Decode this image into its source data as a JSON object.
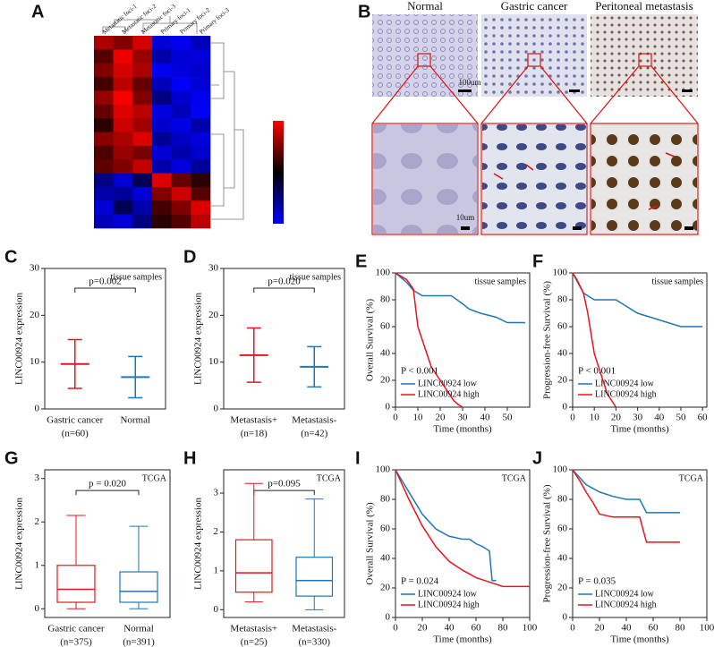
{
  "heatmap": {
    "label": "A",
    "columns": [
      "Metastatic foci-1",
      "Metastatic foci-2",
      "Metastatic foci-3",
      "Primary foci-1",
      "Primary foci-2",
      "Primary foci-3"
    ],
    "clim": [
      -3,
      3
    ],
    "values": [
      [
        2.0,
        1.5,
        2.5,
        -2.5,
        -2.8,
        -2.2
      ],
      [
        1.0,
        2.8,
        1.8,
        -2.0,
        -2.5,
        -2.6
      ],
      [
        1.5,
        2.5,
        2.0,
        -2.8,
        -2.6,
        -2.4
      ],
      [
        0.8,
        2.2,
        1.2,
        -2.2,
        -2.9,
        -2.5
      ],
      [
        1.8,
        2.9,
        1.5,
        -1.5,
        -2.4,
        -2.8
      ],
      [
        1.2,
        2.6,
        2.2,
        -2.6,
        -2.2,
        -2.9
      ],
      [
        0.5,
        2.4,
        1.9,
        -2.4,
        -2.7,
        -2.0
      ],
      [
        1.6,
        2.0,
        2.6,
        -1.8,
        -2.3,
        -2.6
      ],
      [
        0.9,
        1.8,
        1.4,
        -2.5,
        -2.0,
        -2.4
      ],
      [
        1.1,
        1.5,
        2.3,
        -2.0,
        -2.6,
        -1.8
      ],
      [
        -1.5,
        -2.5,
        -1.0,
        2.6,
        1.2,
        0.5
      ],
      [
        -2.0,
        -1.8,
        -2.5,
        1.5,
        2.4,
        1.0
      ],
      [
        -2.5,
        -1.0,
        -2.0,
        0.8,
        1.5,
        2.6
      ],
      [
        -2.2,
        -2.6,
        -1.5,
        0.5,
        1.0,
        2.2
      ]
    ]
  },
  "ihc": {
    "label": "B",
    "titles": [
      "Normal",
      "Gastric cancer",
      "Peritoneal metastasis"
    ],
    "scale_top": "100um",
    "scale_bottom": "10um"
  },
  "chart_data": [
    {
      "label": "C",
      "type": "errorbar",
      "ylabel": "LINC00924 expression",
      "annotation": "p=0.002",
      "corner_note": "tissue samples",
      "categories": [
        "Gastric cancer",
        "Normal"
      ],
      "category_counts": [
        "(n=60)",
        null
      ],
      "values": [
        9.6,
        6.8
      ],
      "errors": [
        5.2,
        4.4
      ],
      "colors": [
        "#e8141e",
        "#1f77b4"
      ],
      "ylim": [
        0,
        30
      ],
      "yticks": [
        0,
        10,
        20,
        30
      ]
    },
    {
      "label": "D",
      "type": "errorbar",
      "ylabel": "LINC00924 expression",
      "annotation": "p=0.020",
      "corner_note": "tissue samples",
      "categories": [
        "Metastasis+",
        "Metastasis-"
      ],
      "category_counts": [
        "(n=18)",
        "(n=42)"
      ],
      "values": [
        11.5,
        9.0
      ],
      "errors": [
        5.8,
        4.3
      ],
      "colors": [
        "#e8141e",
        "#1f77b4"
      ],
      "ylim": [
        0,
        30
      ],
      "yticks": [
        0,
        10,
        20,
        30
      ]
    },
    {
      "label": "E",
      "type": "line",
      "ylabel": "Overall Survival (%)",
      "xlabel": "Time (months)",
      "annotation": "P < 0.001",
      "corner_note": "tissue samples",
      "xlim": [
        0,
        60
      ],
      "xticks": [
        0,
        10,
        20,
        30,
        40,
        50
      ],
      "ylim": [
        0,
        100
      ],
      "yticks": [
        0,
        20,
        40,
        60,
        80,
        100
      ],
      "legend": "lower left",
      "series": [
        {
          "name": "LINC00924 low",
          "color": "#1f77b4",
          "x": [
            0,
            5,
            8,
            12,
            25,
            30,
            33,
            38,
            45,
            50,
            58
          ],
          "values": [
            100,
            93,
            87,
            83,
            83,
            77,
            73,
            70,
            67,
            63,
            63
          ]
        },
        {
          "name": "LINC00924 high",
          "color": "#e8141e",
          "x": [
            0,
            5,
            8,
            10,
            12,
            14,
            16,
            18,
            20,
            22,
            24,
            26,
            28,
            30
          ],
          "values": [
            100,
            95,
            88,
            60,
            50,
            40,
            30,
            25,
            20,
            15,
            10,
            5,
            2,
            0
          ]
        }
      ]
    },
    {
      "label": "F",
      "type": "line",
      "ylabel": "Progression-free Survival (%)",
      "xlabel": "Time (months)",
      "annotation": "P < 0.001",
      "corner_note": "tissue samples",
      "xlim": [
        0,
        62
      ],
      "xticks": [
        0,
        10,
        20,
        30,
        40,
        50,
        60
      ],
      "ylim": [
        0,
        100
      ],
      "yticks": [
        0,
        20,
        40,
        60,
        80,
        100
      ],
      "legend": "lower left",
      "series": [
        {
          "name": "LINC00924 low",
          "color": "#1f77b4",
          "x": [
            0,
            5,
            10,
            20,
            25,
            30,
            40,
            50,
            60
          ],
          "values": [
            100,
            85,
            80,
            80,
            75,
            70,
            65,
            60,
            60
          ]
        },
        {
          "name": "LINC00924 high",
          "color": "#e8141e",
          "x": [
            0,
            2,
            5,
            7,
            9,
            10,
            12,
            14,
            16,
            18,
            20
          ],
          "values": [
            100,
            95,
            85,
            70,
            50,
            40,
            30,
            20,
            10,
            5,
            0
          ]
        }
      ]
    },
    {
      "label": "G",
      "type": "box",
      "ylabel": "LINC00924 expression",
      "annotation": "p = 0.020",
      "corner_note": "TCGA",
      "categories": [
        "Gastric cancer",
        "Normal"
      ],
      "category_counts": [
        "(n=375)",
        "(n=391)"
      ],
      "boxes": [
        {
          "low": 0,
          "q1": 0.15,
          "median": 0.45,
          "q3": 1.0,
          "high": 2.15
        },
        {
          "low": 0,
          "q1": 0.15,
          "median": 0.4,
          "q3": 0.85,
          "high": 1.9
        }
      ],
      "colors": [
        "#e8141e",
        "#1f77b4"
      ],
      "ylim": [
        -0.2,
        3.2
      ],
      "yticks": [
        0,
        1,
        2,
        3
      ]
    },
    {
      "label": "H",
      "type": "box",
      "ylabel": "LINC00924 expression",
      "annotation": "p=0.095",
      "corner_note": "TCGA",
      "categories": [
        "Metastasis+",
        "Metastasis-"
      ],
      "category_counts": [
        "(n=25)",
        "(n=330)"
      ],
      "boxes": [
        {
          "low": 0.2,
          "q1": 0.45,
          "median": 0.95,
          "q3": 1.8,
          "high": 3.25
        },
        {
          "low": 0,
          "q1": 0.35,
          "median": 0.75,
          "q3": 1.35,
          "high": 2.85
        }
      ],
      "colors": [
        "#e8141e",
        "#1f77b4"
      ],
      "ylim": [
        -0.2,
        3.6
      ],
      "yticks": [
        0,
        1,
        2,
        3
      ]
    },
    {
      "label": "I",
      "type": "line",
      "ylabel": "Overall Survival (%)",
      "xlabel": "Time (months)",
      "annotation": "P = 0.024",
      "corner_note": "TCGA",
      "xlim": [
        0,
        100
      ],
      "xticks": [
        0,
        20,
        40,
        60,
        80,
        100
      ],
      "ylim": [
        0,
        100
      ],
      "yticks": [
        0,
        20,
        40,
        60,
        80,
        100
      ],
      "legend": "lower left",
      "series": [
        {
          "name": "LINC00924 low",
          "color": "#1f77b4",
          "x": [
            0,
            10,
            20,
            30,
            40,
            50,
            55,
            60,
            65,
            70,
            72,
            75
          ],
          "values": [
            100,
            85,
            70,
            60,
            55,
            53,
            53,
            50,
            48,
            45,
            25,
            25
          ]
        },
        {
          "name": "LINC00924 high",
          "color": "#e8141e",
          "x": [
            0,
            10,
            20,
            30,
            40,
            50,
            60,
            70,
            80,
            90,
            100
          ],
          "values": [
            100,
            80,
            62,
            48,
            38,
            32,
            27,
            24,
            21,
            21,
            21
          ]
        }
      ]
    },
    {
      "label": "J",
      "type": "line",
      "ylabel": "Progression-free Survival (%)",
      "xlabel": "Time (months)",
      "annotation": "P = 0.035",
      "corner_note": "TCGA",
      "xlim": [
        0,
        100
      ],
      "xticks": [
        0,
        20,
        40,
        60,
        80,
        100
      ],
      "ylim": [
        0,
        100
      ],
      "yticks": [
        0,
        20,
        40,
        60,
        80,
        100
      ],
      "legend": "lower left",
      "series": [
        {
          "name": "LINC00924 low",
          "color": "#1f77b4",
          "x": [
            0,
            5,
            10,
            20,
            30,
            40,
            50,
            55,
            60,
            70,
            80
          ],
          "values": [
            100,
            95,
            90,
            85,
            82,
            80,
            80,
            71,
            71,
            71,
            71
          ]
        },
        {
          "name": "LINC00924 high",
          "color": "#e8141e",
          "x": [
            0,
            5,
            10,
            15,
            20,
            30,
            40,
            50,
            55,
            60,
            80
          ],
          "values": [
            100,
            93,
            85,
            78,
            70,
            68,
            68,
            68,
            51,
            51,
            51
          ]
        }
      ]
    }
  ]
}
